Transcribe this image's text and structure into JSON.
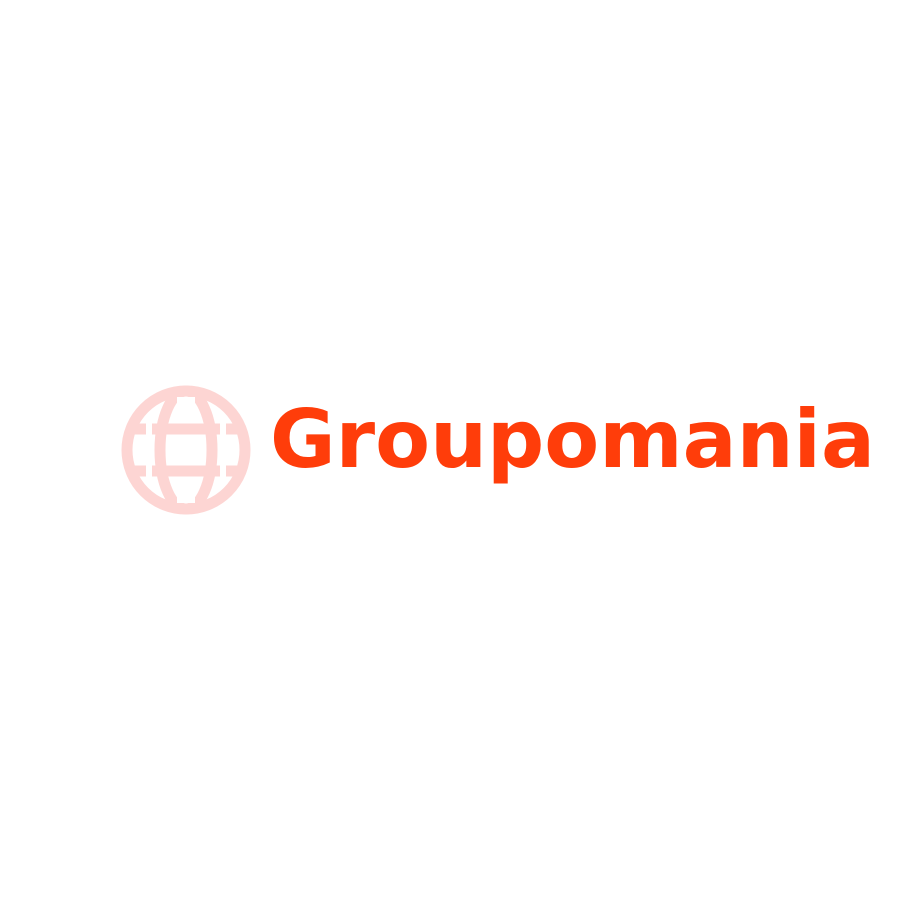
{
  "brand": {
    "name": "Groupomania",
    "text_color": "#ff3d0a",
    "icon": "globe-icon",
    "icon_color": "#fdd5d3"
  }
}
